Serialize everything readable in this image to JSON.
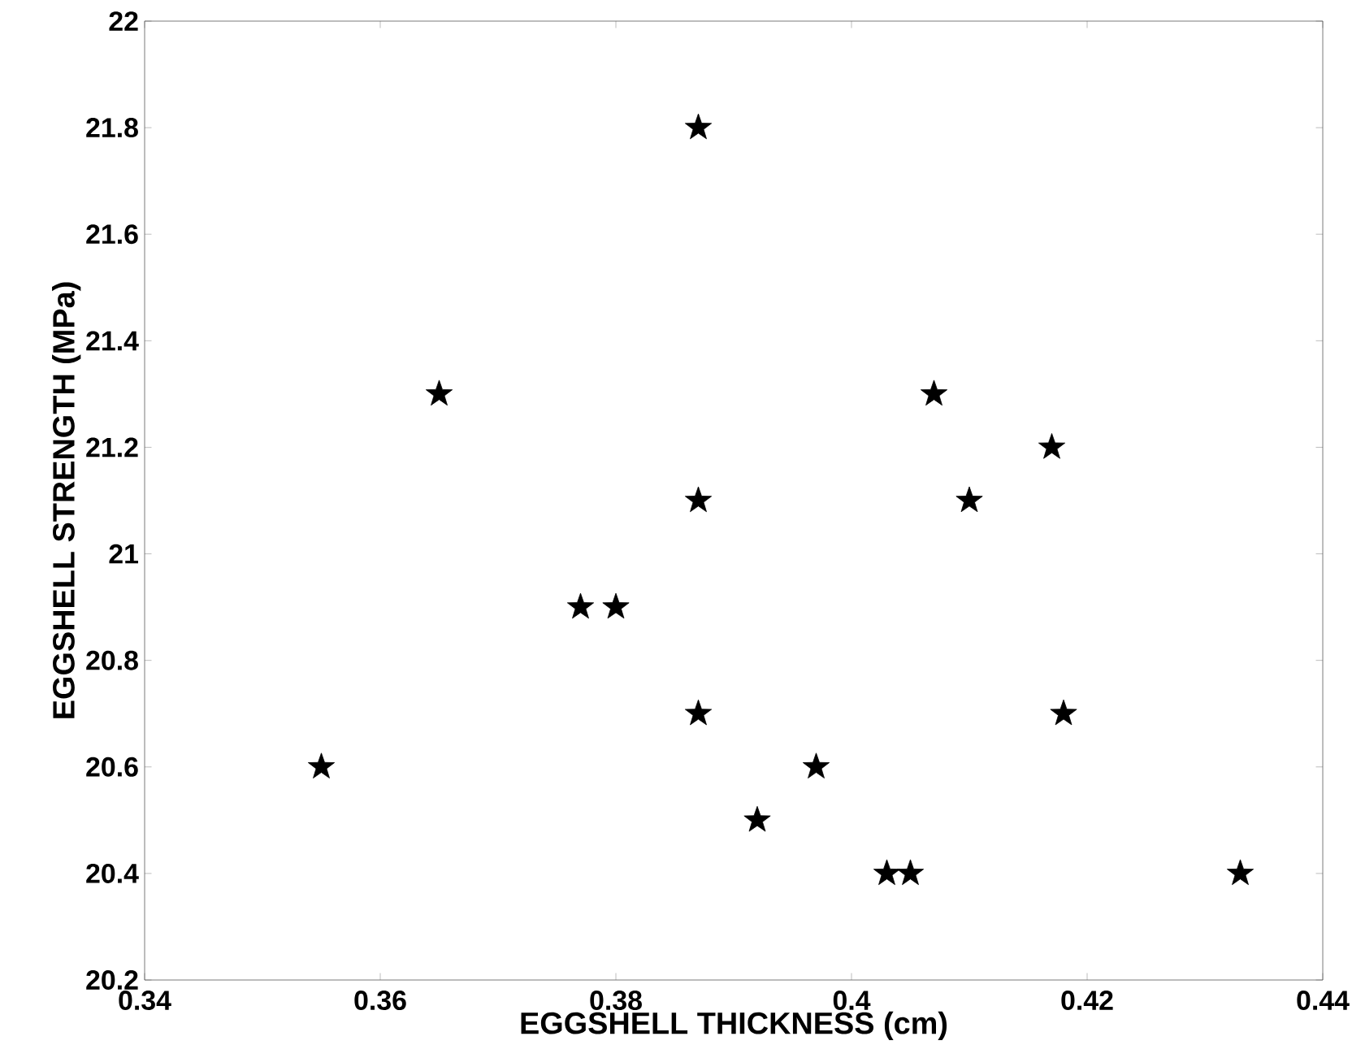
{
  "chart_data": {
    "type": "scatter",
    "xlabel": "EGGSHELL THICKNESS   (cm)",
    "ylabel": "EGGSHELL STRENGTH (MPa)",
    "x": [
      0.355,
      0.365,
      0.377,
      0.38,
      0.387,
      0.387,
      0.387,
      0.392,
      0.397,
      0.403,
      0.405,
      0.407,
      0.41,
      0.417,
      0.418,
      0.433
    ],
    "values": [
      20.6,
      21.3,
      20.9,
      20.9,
      21.8,
      21.1,
      20.7,
      20.5,
      20.6,
      20.4,
      20.4,
      21.3,
      21.1,
      21.2,
      20.7,
      20.4
    ],
    "color": "#000000",
    "marker": "star",
    "xlim": [
      0.34,
      0.44
    ],
    "xticks": [
      0.34,
      0.36,
      0.38,
      0.4,
      0.42,
      0.44
    ],
    "ylim": [
      20.2,
      22
    ],
    "yticks": [
      20.2,
      20.4,
      20.6,
      20.8,
      21,
      21.2,
      21.4,
      21.6,
      21.8,
      22
    ]
  }
}
